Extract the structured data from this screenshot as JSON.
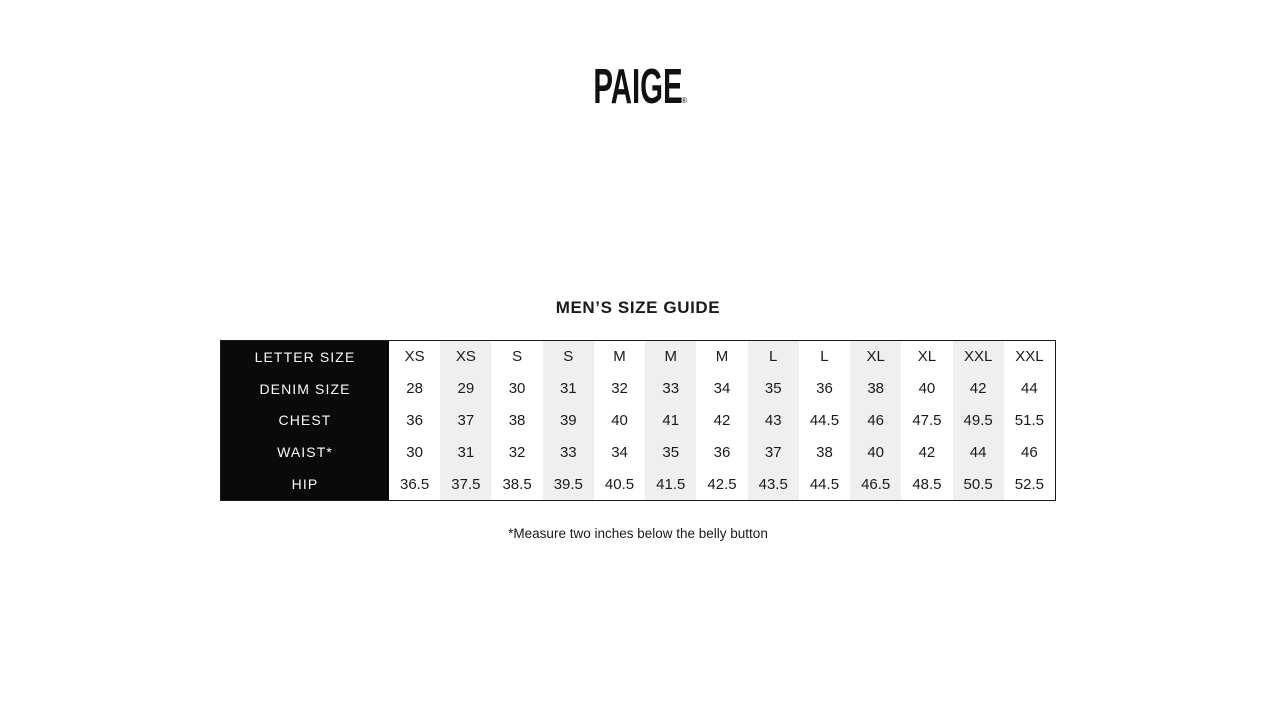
{
  "logo": {
    "text": "PAIGE",
    "registered_mark": "®"
  },
  "colors": {
    "background": "#ffffff",
    "header_column_bg": "#0a0a0a",
    "header_column_text": "#fafafa",
    "stripe": "#efefef",
    "text": "#1a1a1a",
    "border": "#1a1a1a"
  },
  "chart_data": {
    "type": "table",
    "title": "MEN’S SIZE GUIDE",
    "footnote": "*Measure two inches below the belly button",
    "row_headers": [
      "LETTER SIZE",
      "DENIM SIZE",
      "CHEST",
      "WAIST*",
      "HIP"
    ],
    "rows": [
      {
        "label": "LETTER SIZE",
        "values": [
          "XS",
          "XS",
          "S",
          "S",
          "M",
          "M",
          "M",
          "L",
          "L",
          "XL",
          "XL",
          "XXL",
          "XXL"
        ]
      },
      {
        "label": "DENIM SIZE",
        "values": [
          "28",
          "29",
          "30",
          "31",
          "32",
          "33",
          "34",
          "35",
          "36",
          "38",
          "40",
          "42",
          "44"
        ]
      },
      {
        "label": "CHEST",
        "values": [
          "36",
          "37",
          "38",
          "39",
          "40",
          "41",
          "42",
          "43",
          "44.5",
          "46",
          "47.5",
          "49.5",
          "51.5"
        ]
      },
      {
        "label": "WAIST*",
        "values": [
          "30",
          "31",
          "32",
          "33",
          "34",
          "35",
          "36",
          "37",
          "38",
          "40",
          "42",
          "44",
          "46"
        ]
      },
      {
        "label": "HIP",
        "values": [
          "36.5",
          "37.5",
          "38.5",
          "39.5",
          "40.5",
          "41.5",
          "42.5",
          "43.5",
          "44.5",
          "46.5",
          "48.5",
          "50.5",
          "52.5"
        ]
      }
    ],
    "striped_column_indexes_1based": [
      2,
      4,
      6,
      8,
      10,
      12
    ],
    "layout": {
      "header_column_position": "left",
      "grid_lines": "none",
      "column_striping": true
    }
  }
}
